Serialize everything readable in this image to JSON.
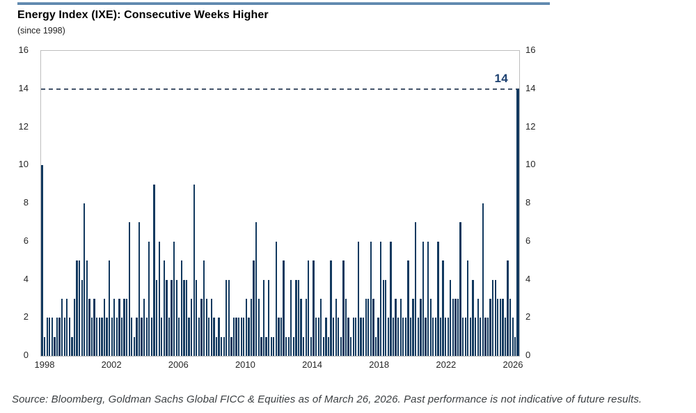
{
  "header": {
    "title": "Energy Index (IXE): Consecutive Weeks Higher",
    "subtitle": "(since 1998)"
  },
  "footer": {
    "source": "Source: Bloomberg, Goldman Sachs Global FICC & Equities as of March 26, 2026. Past performance is not indicative of future results."
  },
  "colors": {
    "bar": "#12395f",
    "threshold_line": "#44546a",
    "threshold_label": "#1c4070",
    "plot_border": "#bdbdbd",
    "axis_text": "#262626",
    "accent_line": "#5b85ac"
  },
  "chart_data": {
    "type": "bar",
    "title": "Energy Index (IXE): Consecutive Weeks Higher",
    "subtitle": "(since 1998)",
    "xlabel": "",
    "ylabel": "",
    "ylim": [
      0,
      16
    ],
    "y_ticks": [
      0,
      2,
      4,
      6,
      8,
      10,
      12,
      14,
      16
    ],
    "y_axis_sides": "both",
    "x_tick_years": [
      "1998",
      "2002",
      "2006",
      "2010",
      "2014",
      "2018",
      "2022",
      "2026"
    ],
    "x_range_years": [
      1998.0,
      2026.35
    ],
    "grid": false,
    "legend": "none",
    "threshold_line": {
      "value": 14,
      "label": "14",
      "style": "dashed"
    },
    "series_note": "consecutive-weeks-higher streak lengths, weekly streaks since 1998; final streak = 14 as of March 26, 2026",
    "values": [
      10,
      1,
      2,
      2,
      2,
      1,
      2,
      2,
      3,
      2,
      3,
      2,
      1,
      3,
      5,
      5,
      4,
      8,
      5,
      3,
      2,
      3,
      2,
      2,
      2,
      3,
      2,
      5,
      2,
      3,
      2,
      3,
      2,
      3,
      3,
      7,
      2,
      1,
      2,
      7,
      2,
      3,
      2,
      6,
      2,
      9,
      4,
      6,
      2,
      5,
      4,
      2,
      4,
      6,
      4,
      2,
      5,
      4,
      4,
      2,
      3,
      9,
      4,
      2,
      3,
      5,
      3,
      2,
      3,
      2,
      1,
      2,
      1,
      1,
      4,
      4,
      1,
      2,
      2,
      2,
      2,
      2,
      3,
      2,
      3,
      5,
      7,
      3,
      1,
      4,
      1,
      4,
      1,
      1,
      6,
      2,
      2,
      5,
      1,
      1,
      4,
      1,
      4,
      4,
      3,
      1,
      3,
      5,
      1,
      5,
      2,
      2,
      3,
      1,
      2,
      1,
      5,
      2,
      3,
      2,
      1,
      5,
      3,
      2,
      1,
      2,
      2,
      6,
      2,
      2,
      3,
      3,
      6,
      3,
      1,
      2,
      6,
      4,
      4,
      2,
      6,
      2,
      3,
      2,
      3,
      2,
      2,
      5,
      2,
      3,
      7,
      2,
      3,
      6,
      2,
      6,
      3,
      2,
      2,
      6,
      2,
      5,
      2,
      2,
      4,
      3,
      3,
      3,
      7,
      2,
      2,
      5,
      2,
      4,
      2,
      3,
      2,
      8,
      2,
      2,
      3,
      4,
      4,
      3,
      3,
      3,
      2,
      5,
      3,
      2,
      1,
      14
    ]
  }
}
